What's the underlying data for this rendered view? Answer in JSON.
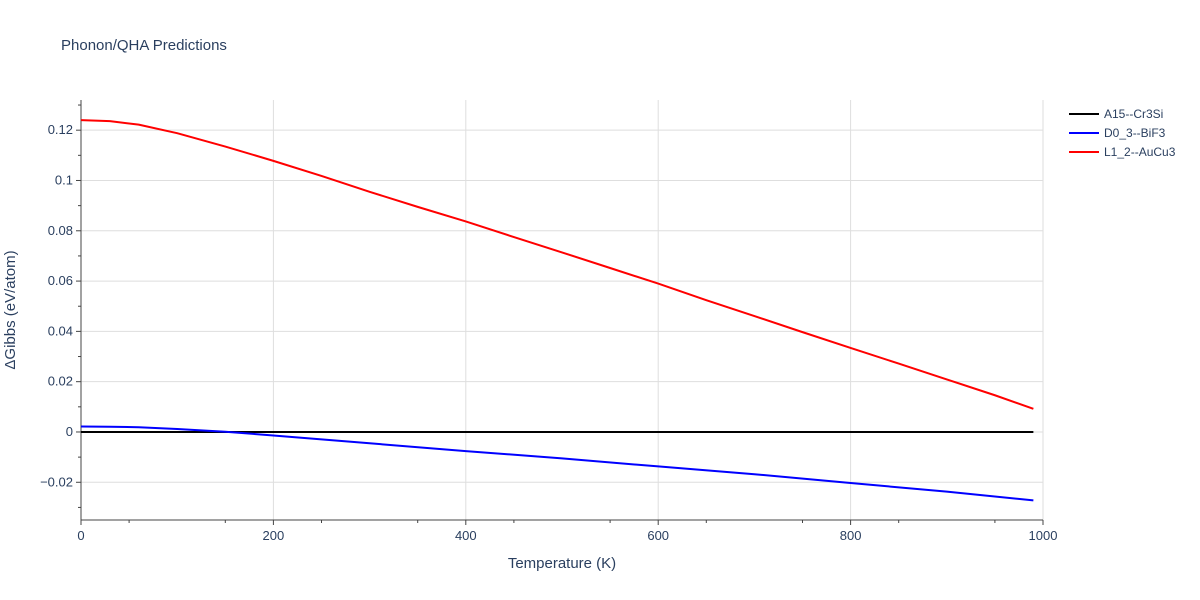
{
  "chart_data": {
    "type": "line",
    "title": "Phonon/QHA Predictions",
    "xlabel": "Temperature (K)",
    "ylabel": "ΔGibbs (eV/atom)",
    "xlim": [
      0,
      1000
    ],
    "ylim": [
      -0.035,
      0.132
    ],
    "x_ticks": [
      0,
      200,
      400,
      600,
      800,
      1000
    ],
    "x_tick_labels": [
      "0",
      "200",
      "400",
      "600",
      "800",
      "1000"
    ],
    "y_ticks": [
      -0.02,
      0,
      0.02,
      0.04,
      0.06,
      0.08,
      0.1,
      0.12
    ],
    "y_tick_labels": [
      "−0.02",
      "0",
      "0.02",
      "0.04",
      "0.06",
      "0.08",
      "0.1",
      "0.12"
    ],
    "grid": true,
    "legend_position": "top-right",
    "series": [
      {
        "name": "A15--Cr3Si",
        "color": "#000000",
        "x": [
          0,
          990
        ],
        "y": [
          0,
          0
        ]
      },
      {
        "name": "D0_3--BiF3",
        "color": "#0000ff",
        "x": [
          0,
          30,
          60,
          100,
          150,
          200,
          300,
          400,
          500,
          600,
          700,
          800,
          900,
          990
        ],
        "y": [
          0.0022,
          0.0021,
          0.0019,
          0.0012,
          0.0001,
          -0.0014,
          -0.0045,
          -0.0076,
          -0.0105,
          -0.0137,
          -0.0168,
          -0.0203,
          -0.0237,
          -0.0272
        ]
      },
      {
        "name": "L1_2--AuCu3",
        "color": "#ff0000",
        "x": [
          0,
          30,
          60,
          100,
          150,
          200,
          250,
          300,
          350,
          400,
          450,
          500,
          550,
          600,
          650,
          700,
          750,
          800,
          850,
          900,
          950,
          990
        ],
        "y": [
          0.124,
          0.1236,
          0.1222,
          0.1188,
          0.1135,
          0.1078,
          0.1018,
          0.0955,
          0.0895,
          0.0837,
          0.0775,
          0.0714,
          0.0652,
          0.059,
          0.0524,
          0.0461,
          0.0397,
          0.0334,
          0.0272,
          0.0209,
          0.0146,
          0.0092
        ]
      }
    ]
  }
}
